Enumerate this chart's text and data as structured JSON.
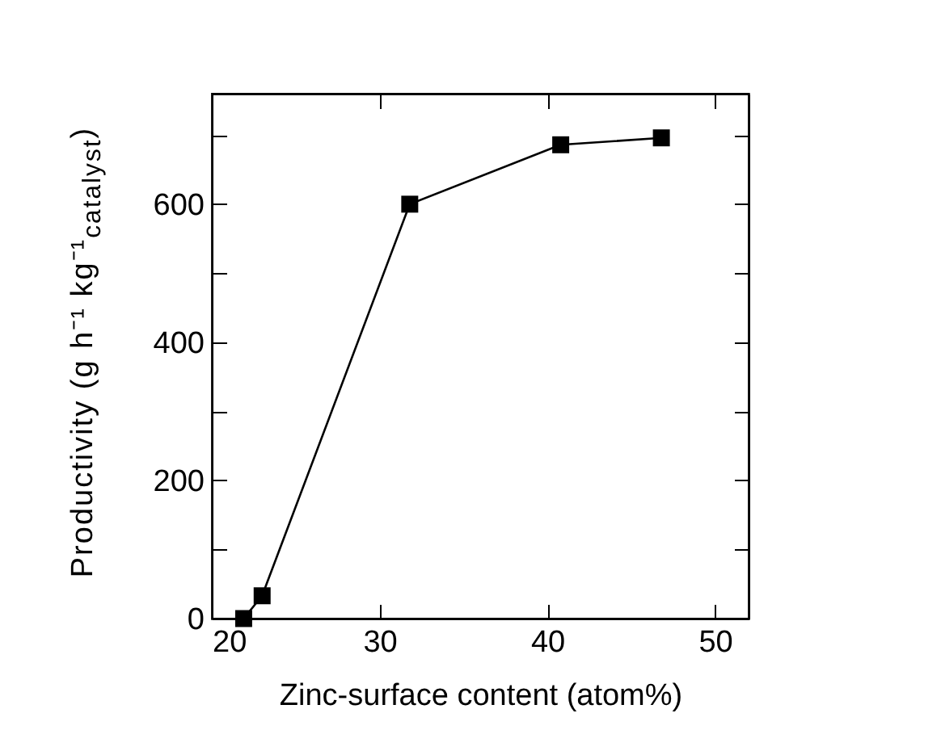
{
  "chart_data": {
    "type": "line",
    "xlabel": "Zinc-surface content (atom%)",
    "ylabel": "Productivity (g h⁻¹ kg⁻¹$_{catalyst}$)",
    "x": [
      21.9,
      23.0,
      31.8,
      40.8,
      46.8
    ],
    "series": [
      {
        "color": "#000000",
        "values": [
          0,
          33,
          600,
          686,
          696
        ]
      }
    ],
    "xlim": [
      20,
      52
    ],
    "xticks": [
      20,
      30,
      40,
      50
    ],
    "ylim": [
      0,
      760
    ],
    "yticks": [
      0,
      {
        "value": 100,
        "label": null
      },
      200,
      {
        "value": 300,
        "label": null
      },
      400,
      {
        "value": 500,
        "label": null
      },
      600,
      {
        "value": 700,
        "label": null
      }
    ],
    "marker": "square",
    "line_style": "solid"
  }
}
